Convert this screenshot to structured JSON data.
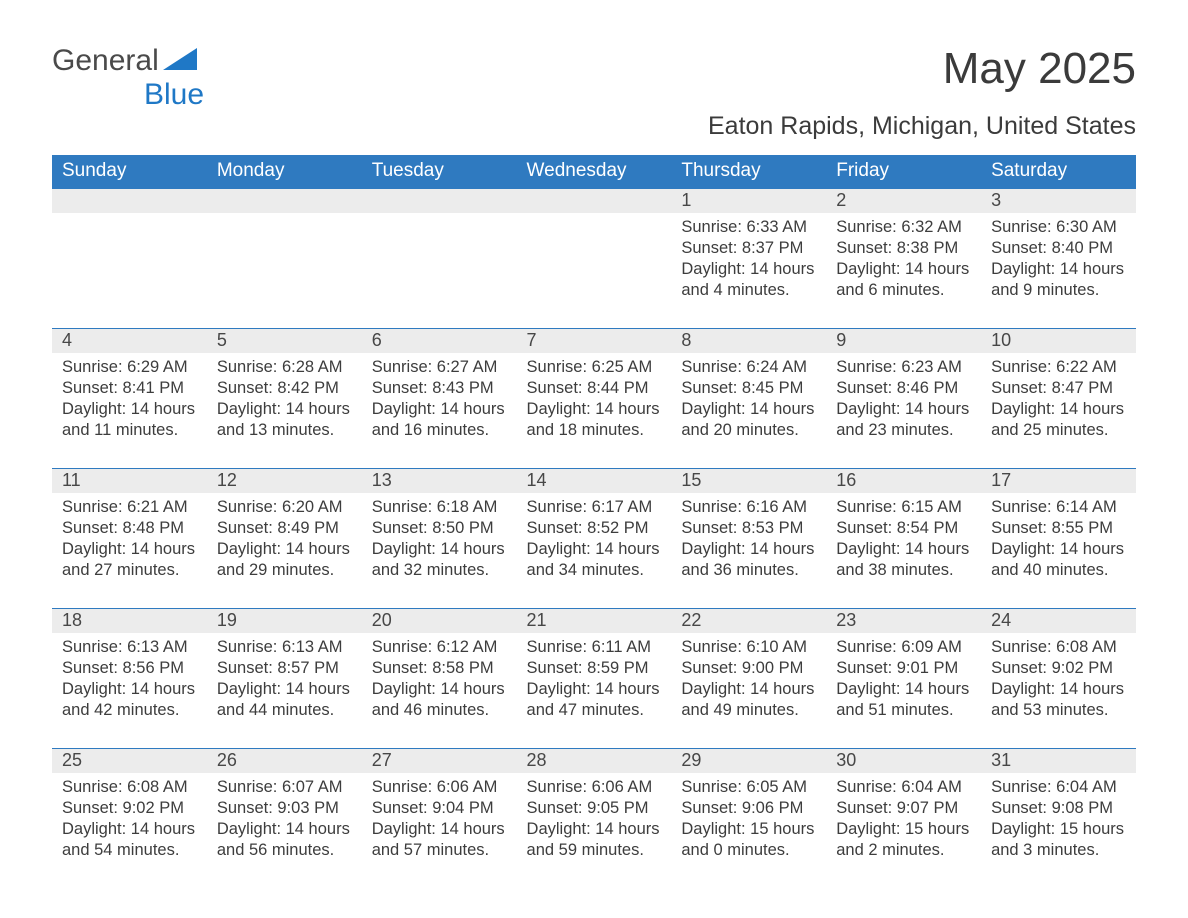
{
  "logo": {
    "text1": "General",
    "text2": "Blue"
  },
  "title": "May 2025",
  "location": "Eaton Rapids, Michigan, United States",
  "colors": {
    "header_bg": "#2f7ac0",
    "header_text": "#ffffff",
    "daynum_bg": "#ececec",
    "row_border": "#2f7ac0",
    "body_text": "#3d3d3d",
    "logo_blue": "#1f78c6"
  },
  "font": {
    "family": "Arial",
    "title_size": 44,
    "location_size": 25,
    "th_size": 19,
    "daynum_size": 18,
    "info_size": 16.5
  },
  "weekdays": [
    "Sunday",
    "Monday",
    "Tuesday",
    "Wednesday",
    "Thursday",
    "Friday",
    "Saturday"
  ],
  "weeks": [
    [
      null,
      null,
      null,
      null,
      {
        "n": "1",
        "sunrise": "6:33 AM",
        "sunset": "8:37 PM",
        "daylight": "14 hours and 4 minutes."
      },
      {
        "n": "2",
        "sunrise": "6:32 AM",
        "sunset": "8:38 PM",
        "daylight": "14 hours and 6 minutes."
      },
      {
        "n": "3",
        "sunrise": "6:30 AM",
        "sunset": "8:40 PM",
        "daylight": "14 hours and 9 minutes."
      }
    ],
    [
      {
        "n": "4",
        "sunrise": "6:29 AM",
        "sunset": "8:41 PM",
        "daylight": "14 hours and 11 minutes."
      },
      {
        "n": "5",
        "sunrise": "6:28 AM",
        "sunset": "8:42 PM",
        "daylight": "14 hours and 13 minutes."
      },
      {
        "n": "6",
        "sunrise": "6:27 AM",
        "sunset": "8:43 PM",
        "daylight": "14 hours and 16 minutes."
      },
      {
        "n": "7",
        "sunrise": "6:25 AM",
        "sunset": "8:44 PM",
        "daylight": "14 hours and 18 minutes."
      },
      {
        "n": "8",
        "sunrise": "6:24 AM",
        "sunset": "8:45 PM",
        "daylight": "14 hours and 20 minutes."
      },
      {
        "n": "9",
        "sunrise": "6:23 AM",
        "sunset": "8:46 PM",
        "daylight": "14 hours and 23 minutes."
      },
      {
        "n": "10",
        "sunrise": "6:22 AM",
        "sunset": "8:47 PM",
        "daylight": "14 hours and 25 minutes."
      }
    ],
    [
      {
        "n": "11",
        "sunrise": "6:21 AM",
        "sunset": "8:48 PM",
        "daylight": "14 hours and 27 minutes."
      },
      {
        "n": "12",
        "sunrise": "6:20 AM",
        "sunset": "8:49 PM",
        "daylight": "14 hours and 29 minutes."
      },
      {
        "n": "13",
        "sunrise": "6:18 AM",
        "sunset": "8:50 PM",
        "daylight": "14 hours and 32 minutes."
      },
      {
        "n": "14",
        "sunrise": "6:17 AM",
        "sunset": "8:52 PM",
        "daylight": "14 hours and 34 minutes."
      },
      {
        "n": "15",
        "sunrise": "6:16 AM",
        "sunset": "8:53 PM",
        "daylight": "14 hours and 36 minutes."
      },
      {
        "n": "16",
        "sunrise": "6:15 AM",
        "sunset": "8:54 PM",
        "daylight": "14 hours and 38 minutes."
      },
      {
        "n": "17",
        "sunrise": "6:14 AM",
        "sunset": "8:55 PM",
        "daylight": "14 hours and 40 minutes."
      }
    ],
    [
      {
        "n": "18",
        "sunrise": "6:13 AM",
        "sunset": "8:56 PM",
        "daylight": "14 hours and 42 minutes."
      },
      {
        "n": "19",
        "sunrise": "6:13 AM",
        "sunset": "8:57 PM",
        "daylight": "14 hours and 44 minutes."
      },
      {
        "n": "20",
        "sunrise": "6:12 AM",
        "sunset": "8:58 PM",
        "daylight": "14 hours and 46 minutes."
      },
      {
        "n": "21",
        "sunrise": "6:11 AM",
        "sunset": "8:59 PM",
        "daylight": "14 hours and 47 minutes."
      },
      {
        "n": "22",
        "sunrise": "6:10 AM",
        "sunset": "9:00 PM",
        "daylight": "14 hours and 49 minutes."
      },
      {
        "n": "23",
        "sunrise": "6:09 AM",
        "sunset": "9:01 PM",
        "daylight": "14 hours and 51 minutes."
      },
      {
        "n": "24",
        "sunrise": "6:08 AM",
        "sunset": "9:02 PM",
        "daylight": "14 hours and 53 minutes."
      }
    ],
    [
      {
        "n": "25",
        "sunrise": "6:08 AM",
        "sunset": "9:02 PM",
        "daylight": "14 hours and 54 minutes."
      },
      {
        "n": "26",
        "sunrise": "6:07 AM",
        "sunset": "9:03 PM",
        "daylight": "14 hours and 56 minutes."
      },
      {
        "n": "27",
        "sunrise": "6:06 AM",
        "sunset": "9:04 PM",
        "daylight": "14 hours and 57 minutes."
      },
      {
        "n": "28",
        "sunrise": "6:06 AM",
        "sunset": "9:05 PM",
        "daylight": "14 hours and 59 minutes."
      },
      {
        "n": "29",
        "sunrise": "6:05 AM",
        "sunset": "9:06 PM",
        "daylight": "15 hours and 0 minutes."
      },
      {
        "n": "30",
        "sunrise": "6:04 AM",
        "sunset": "9:07 PM",
        "daylight": "15 hours and 2 minutes."
      },
      {
        "n": "31",
        "sunrise": "6:04 AM",
        "sunset": "9:08 PM",
        "daylight": "15 hours and 3 minutes."
      }
    ]
  ],
  "labels": {
    "sunrise": "Sunrise:",
    "sunset": "Sunset:",
    "daylight": "Daylight:"
  }
}
